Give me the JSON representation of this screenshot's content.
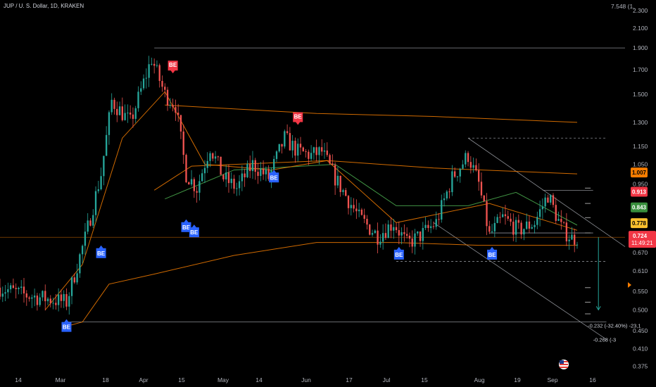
{
  "header": {
    "title": "JUP / U. S. Dollar, 1D, KRAKEN"
  },
  "price_axis": {
    "top_partial": "7.548 (1,",
    "ticks": [
      "2.300",
      "2.100",
      "1.900",
      "1.700",
      "1.500",
      "1.300",
      "1.150",
      "1.050",
      "0.950",
      "0.720",
      "0.670",
      "0.610",
      "0.550",
      "0.500",
      "0.450",
      "0.410",
      "0.375"
    ]
  },
  "price_tags": [
    {
      "value": "1.007",
      "bg": "#f57c00",
      "fg": "#000000"
    },
    {
      "value": "0.913",
      "bg": "#f23645",
      "fg": "#ffffff"
    },
    {
      "value": "0.843",
      "bg": "#388e3c",
      "fg": "#ffffff"
    },
    {
      "value": "0.778",
      "bg": "#fbc02d",
      "fg": "#000000"
    }
  ],
  "current_price": {
    "value": "0.724",
    "countdown": "11:49:21",
    "bg": "#f23645"
  },
  "time_axis": {
    "ticks": [
      "14",
      "Mar",
      "18",
      "Apr",
      "15",
      "May",
      "14",
      "Jun",
      "17",
      "Jul",
      "15",
      "Aug",
      "19",
      "Sep",
      "16"
    ]
  },
  "signals": [
    {
      "label": "BE",
      "kind": "sell",
      "date": "2024-04-08",
      "price": 1.73
    },
    {
      "label": "BE",
      "kind": "sell",
      "date": "2024-05-25",
      "price": 1.33
    },
    {
      "label": "BE",
      "kind": "buy",
      "date": "2024-03-12",
      "price": 0.67
    },
    {
      "label": "BE",
      "kind": "buy",
      "date": "2024-04-13",
      "price": 0.765
    },
    {
      "label": "BE",
      "kind": "buy",
      "date": "2024-04-16",
      "price": 0.745
    },
    {
      "label": "BE",
      "kind": "buy",
      "date": "2024-05-16",
      "price": 0.985
    },
    {
      "label": "BE",
      "kind": "buy",
      "date": "2024-07-02",
      "price": 0.665
    },
    {
      "label": "BE",
      "kind": "buy",
      "date": "2024-08-06",
      "price": 0.665
    },
    {
      "label": "BE",
      "kind": "buy",
      "date": "2024-02-28",
      "price": 0.46
    }
  ],
  "annotations": [
    {
      "text": "-0.232 (-32.40%) -23,1",
      "date": "2024-09-11",
      "price": 0.457
    },
    {
      "text": "-0.268 (-3",
      "date": "2024-09-13",
      "price": 0.425
    }
  ],
  "colors": {
    "up": "#26a69a",
    "down": "#ef5350",
    "background": "#000000",
    "ma_orange": "#f57c00",
    "ma_green": "#4caf50",
    "signal_buy": "#2962ff",
    "signal_sell": "#f23645"
  },
  "chart_data": {
    "type": "candlestick",
    "symbol": "JUP / U. S. Dollar",
    "interval": "1D",
    "exchange": "KRAKEN",
    "x_range": [
      "2024-02-03",
      "2024-09-25"
    ],
    "y_scale": "log",
    "y_range": [
      0.36,
      2.34
    ],
    "current_price": 0.724,
    "key_points": [
      {
        "date": "2024-02-03",
        "price": 0.56
      },
      {
        "date": "2024-02-12",
        "price": 0.54
      },
      {
        "date": "2024-02-20",
        "price": 0.53
      },
      {
        "date": "2024-02-28",
        "price": 0.52
      },
      {
        "date": "2024-03-06",
        "price": 0.72
      },
      {
        "date": "2024-03-12",
        "price": 1.0
      },
      {
        "date": "2024-03-16",
        "price": 1.45
      },
      {
        "date": "2024-03-23",
        "price": 1.3
      },
      {
        "date": "2024-03-31",
        "price": 1.8
      },
      {
        "date": "2024-04-05",
        "price": 1.5
      },
      {
        "date": "2024-04-09",
        "price": 1.42
      },
      {
        "date": "2024-04-13",
        "price": 1.0
      },
      {
        "date": "2024-04-17",
        "price": 0.93
      },
      {
        "date": "2024-04-22",
        "price": 1.15
      },
      {
        "date": "2024-04-27",
        "price": 0.98
      },
      {
        "date": "2024-05-02",
        "price": 0.93
      },
      {
        "date": "2024-05-08",
        "price": 1.05
      },
      {
        "date": "2024-05-14",
        "price": 0.98
      },
      {
        "date": "2024-05-20",
        "price": 1.2
      },
      {
        "date": "2024-05-25",
        "price": 1.12
      },
      {
        "date": "2024-05-30",
        "price": 1.1
      },
      {
        "date": "2024-06-03",
        "price": 1.12
      },
      {
        "date": "2024-06-08",
        "price": 0.98
      },
      {
        "date": "2024-06-17",
        "price": 0.8
      },
      {
        "date": "2024-06-24",
        "price": 0.73
      },
      {
        "date": "2024-06-30",
        "price": 0.78
      },
      {
        "date": "2024-07-05",
        "price": 0.7
      },
      {
        "date": "2024-07-10",
        "price": 0.73
      },
      {
        "date": "2024-07-16",
        "price": 0.78
      },
      {
        "date": "2024-07-22",
        "price": 0.98
      },
      {
        "date": "2024-07-28",
        "price": 1.1
      },
      {
        "date": "2024-08-01",
        "price": 0.95
      },
      {
        "date": "2024-08-05",
        "price": 0.73
      },
      {
        "date": "2024-08-10",
        "price": 0.8
      },
      {
        "date": "2024-08-16",
        "price": 0.75
      },
      {
        "date": "2024-08-22",
        "price": 0.78
      },
      {
        "date": "2024-08-27",
        "price": 0.9
      },
      {
        "date": "2024-09-01",
        "price": 0.76
      },
      {
        "date": "2024-09-05",
        "price": 0.72
      },
      {
        "date": "2024-09-07",
        "price": 0.724
      }
    ],
    "moving_averages": [
      {
        "color": "#f57c00",
        "points": [
          [
            "2024-04-05",
            1.42
          ],
          [
            "2024-06-01",
            1.36
          ],
          [
            "2024-07-15",
            1.34
          ],
          [
            "2024-09-07",
            1.3
          ]
        ]
      },
      {
        "color": "#f57c00",
        "points": [
          [
            "2024-04-01",
            0.92
          ],
          [
            "2024-04-15",
            1.04
          ],
          [
            "2024-06-05",
            1.07
          ],
          [
            "2024-07-15",
            1.03
          ],
          [
            "2024-09-07",
            1.0
          ]
        ]
      },
      {
        "color": "#f57c00",
        "points": [
          [
            "2024-02-28",
            0.46
          ],
          [
            "2024-03-05",
            0.47
          ],
          [
            "2024-03-15",
            0.57
          ],
          [
            "2024-04-01",
            0.6
          ],
          [
            "2024-05-01",
            0.66
          ],
          [
            "2024-06-01",
            0.705
          ],
          [
            "2024-07-01",
            0.705
          ],
          [
            "2024-08-01",
            0.695
          ],
          [
            "2024-09-07",
            0.695
          ]
        ]
      },
      {
        "color": "#4caf50",
        "points": [
          [
            "2024-04-05",
            0.88
          ],
          [
            "2024-05-01",
            1.02
          ],
          [
            "2024-06-08",
            1.05
          ],
          [
            "2024-07-01",
            0.85
          ],
          [
            "2024-07-28",
            0.85
          ],
          [
            "2024-08-15",
            0.91
          ],
          [
            "2024-09-07",
            0.77
          ]
        ]
      },
      {
        "color": "#f57c00",
        "points": [
          [
            "2024-02-20",
            0.5
          ],
          [
            "2024-03-05",
            0.63
          ],
          [
            "2024-03-20",
            1.2
          ],
          [
            "2024-04-05",
            1.52
          ],
          [
            "2024-04-20",
            1.05
          ],
          [
            "2024-05-15",
            1.02
          ],
          [
            "2024-06-05",
            1.07
          ],
          [
            "2024-07-01",
            0.78
          ],
          [
            "2024-08-05",
            0.86
          ],
          [
            "2024-09-07",
            0.75
          ]
        ]
      }
    ],
    "trend_lines": [
      {
        "from": [
          "2024-04-01",
          1.9
        ],
        "to": [
          "2024-09-25",
          1.9
        ]
      },
      {
        "from": [
          "2024-02-28",
          0.47
        ],
        "to": [
          "2024-09-18",
          0.47
        ]
      },
      {
        "from": [
          "2024-07-28",
          1.2
        ],
        "to": [
          "2024-09-25",
          0.69
        ]
      },
      {
        "from": [
          "2024-07-15",
          0.78
        ],
        "to": [
          "2024-09-18",
          0.43
        ]
      },
      {
        "from": [
          "2024-08-25",
          0.92
        ],
        "to": [
          "2024-09-13",
          0.92
        ]
      },
      {
        "from": [
          "2024-08-05",
          0.74
        ],
        "to": [
          "2024-09-13",
          0.74
        ]
      }
    ],
    "dashed_levels": [
      {
        "price": 1.2,
        "from": "2024-07-28",
        "to": "2024-09-18"
      },
      {
        "price": 0.64,
        "from": "2024-07-01",
        "to": "2024-09-18"
      }
    ],
    "current_price_line": 0.724,
    "projection_arrow": {
      "date": "2024-09-15",
      "from": 0.724,
      "to": 0.5
    }
  }
}
